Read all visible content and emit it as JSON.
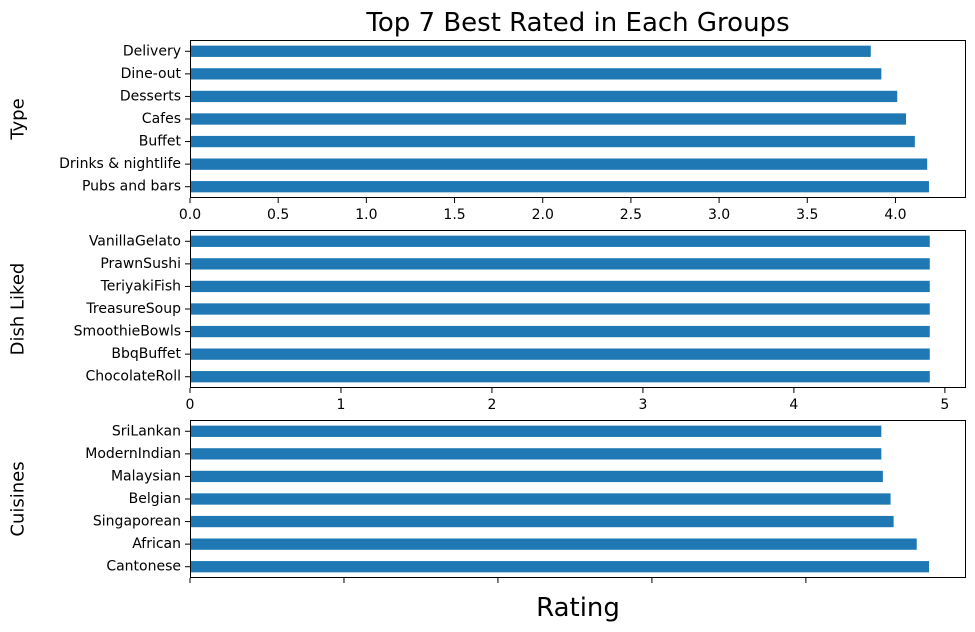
{
  "chart_data": [
    {
      "type": "bar",
      "orientation": "horizontal",
      "title": "Top 7 Best Rated in Each Groups",
      "ylabel": "Type",
      "xlabel": "",
      "categories": [
        "Pubs and bars",
        "Drinks & nightlife",
        "Buffet",
        "Cafes",
        "Desserts",
        "Dine-out",
        "Delivery"
      ],
      "values": [
        4.19,
        4.18,
        4.11,
        4.06,
        4.01,
        3.92,
        3.86
      ],
      "xlim": [
        0,
        4.4
      ],
      "xticks": [
        "0.0",
        "0.5",
        "1.0",
        "1.5",
        "2.0",
        "2.5",
        "3.0",
        "3.5",
        "4.0"
      ],
      "show_xtick_labels": true,
      "color": "#1f77b4"
    },
    {
      "type": "bar",
      "orientation": "horizontal",
      "title": "",
      "ylabel": "Dish Liked",
      "xlabel": "",
      "categories": [
        "ChocolateRoll",
        "BbqBuffet",
        "SmoothieBowls",
        "TreasureSoup",
        "TeriyakiFish",
        "PrawnSushi",
        "VanillaGelato"
      ],
      "values": [
        4.9,
        4.9,
        4.9,
        4.9,
        4.9,
        4.9,
        4.9
      ],
      "xlim": [
        0,
        5.14
      ],
      "xticks": [
        "0",
        "1",
        "2",
        "3",
        "4",
        "5"
      ],
      "show_xtick_labels": true,
      "color": "#1f77b4"
    },
    {
      "type": "bar",
      "orientation": "horizontal",
      "title": "",
      "ylabel": "Cuisines",
      "xlabel": "Rating",
      "categories": [
        "Cantonese",
        "African",
        "Singaporean",
        "Belgian",
        "Malaysian",
        "ModernIndian",
        "SriLankan"
      ],
      "values": [
        4.8,
        4.72,
        4.57,
        4.55,
        4.5,
        4.49,
        4.49
      ],
      "xlim": [
        0,
        5.04
      ],
      "xticks": [
        "0",
        "1",
        "2",
        "3",
        "4"
      ],
      "show_xtick_labels": false,
      "color": "#1f77b4"
    }
  ]
}
